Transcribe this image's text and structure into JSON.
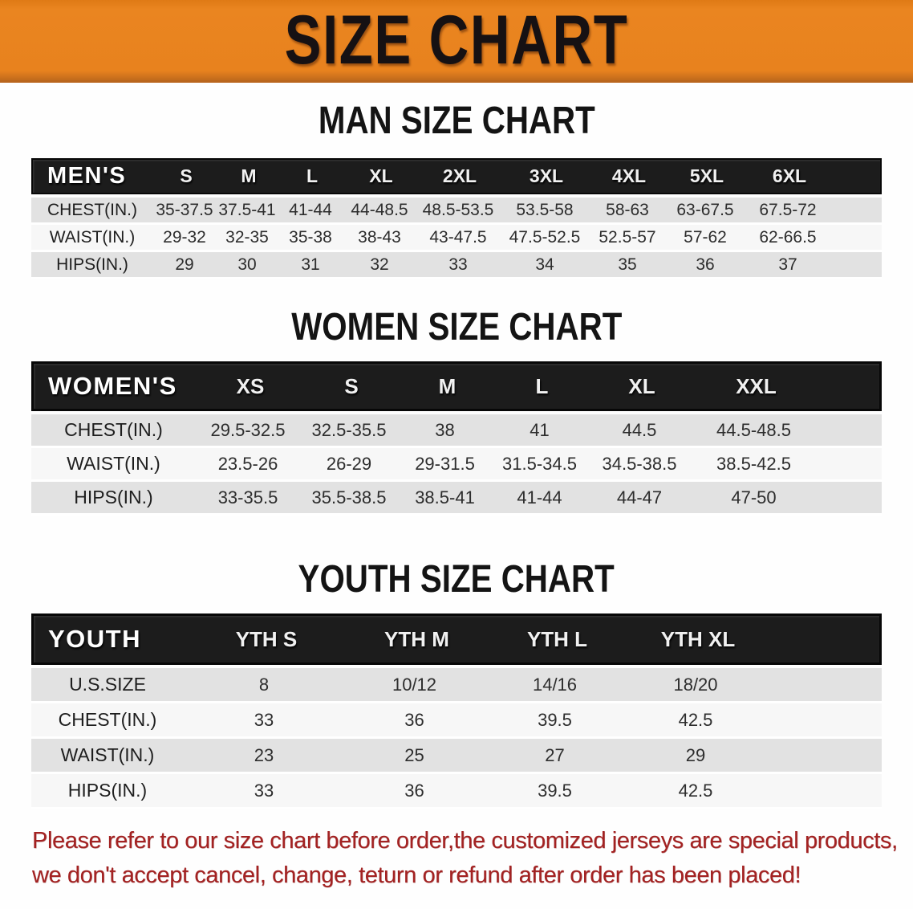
{
  "banner": {
    "title": "SIZE CHART",
    "bg_color": "#E8821E",
    "title_color": "#161113"
  },
  "colors": {
    "header_bar": "#1C1C1C",
    "header_bar_text": "#FFFFFF",
    "row_shaded": "#E2E2E2",
    "row_plain": "#F7F7F7",
    "heading_text": "#141414",
    "footer_text": "#A32222"
  },
  "sections": {
    "men": {
      "heading": "MAN SIZE CHART",
      "table": {
        "header_label": "MEN'S",
        "columns": [
          "S",
          "M",
          "L",
          "XL",
          "2XL",
          "3XL",
          "4XL",
          "5XL",
          "6XL"
        ],
        "rows": [
          {
            "label": "CHEST(IN.)",
            "values": [
              "35-37.5",
              "37.5-41",
              "41-44",
              "44-48.5",
              "48.5-53.5",
              "53.5-58",
              "58-63",
              "63-67.5",
              "67.5-72"
            ]
          },
          {
            "label": "WAIST(IN.)",
            "values": [
              "29-32",
              "32-35",
              "35-38",
              "38-43",
              "43-47.5",
              "47.5-52.5",
              "52.5-57",
              "57-62",
              "62-66.5"
            ]
          },
          {
            "label": "HIPS(IN.)",
            "values": [
              "29",
              "30",
              "31",
              "32",
              "33",
              "34",
              "35",
              "36",
              "37"
            ]
          }
        ]
      }
    },
    "women": {
      "heading": "WOMEN SIZE CHART",
      "table": {
        "header_label": "WOMEN'S",
        "columns": [
          "XS",
          "S",
          "M",
          "L",
          "XL",
          "XXL"
        ],
        "rows": [
          {
            "label": "CHEST(IN.)",
            "values": [
              "29.5-32.5",
              "32.5-35.5",
              "38",
              "41",
              "44.5",
              "44.5-48.5"
            ]
          },
          {
            "label": "WAIST(IN.)",
            "values": [
              "23.5-26",
              "26-29",
              "29-31.5",
              "31.5-34.5",
              "34.5-38.5",
              "38.5-42.5"
            ]
          },
          {
            "label": "HIPS(IN.)",
            "values": [
              "33-35.5",
              "35.5-38.5",
              "38.5-41",
              "41-44",
              "44-47",
              "47-50"
            ]
          }
        ]
      }
    },
    "youth": {
      "heading": "YOUTH SIZE CHART",
      "table": {
        "header_label": "YOUTH",
        "columns": [
          "YTH S",
          "YTH M",
          "YTH L",
          "YTH XL"
        ],
        "rows": [
          {
            "label": "U.S.SIZE",
            "values": [
              "8",
              "10/12",
              "14/16",
              "18/20"
            ]
          },
          {
            "label": "CHEST(IN.)",
            "values": [
              "33",
              "36",
              "39.5",
              "42.5"
            ]
          },
          {
            "label": "WAIST(IN.)",
            "values": [
              "23",
              "25",
              "27",
              "29"
            ]
          },
          {
            "label": "HIPS(IN.)",
            "values": [
              "33",
              "36",
              "39.5",
              "42.5"
            ]
          }
        ]
      }
    }
  },
  "footer": {
    "line1": "Please refer to our size chart before order,the customized jerseys are special products,",
    "line2": "we don't accept cancel, change, teturn or refund after order has been placed!"
  }
}
